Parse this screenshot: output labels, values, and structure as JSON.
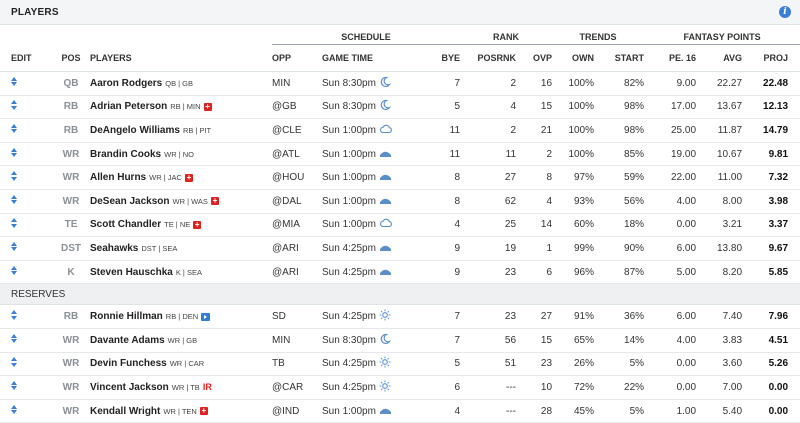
{
  "header": {
    "title": "PLAYERS"
  },
  "groups": {
    "schedule": "SCHEDULE",
    "rank": "RANK",
    "trends": "TRENDS",
    "fantasy": "FANTASY POINTS"
  },
  "columns": {
    "edit": "EDIT",
    "pos": "POS",
    "players": "PLAYERS",
    "opp": "OPP",
    "game_time": "GAME TIME",
    "bye": "BYE",
    "posrnk": "POSRNK",
    "ovp": "OVP",
    "own": "OWN",
    "start": "START",
    "pe16": "PE. 16",
    "avg": "AVG",
    "proj": "PROJ"
  },
  "reserves_label": "RESERVES",
  "starters": [
    {
      "pos": "QB",
      "name": "Aaron Rodgers",
      "meta": "QB | GB",
      "tag": "",
      "opp": "MIN",
      "time": "Sun 8:30pm",
      "weather": "moon",
      "bye": "7",
      "posrnk": "2",
      "ovp": "16",
      "own": "100%",
      "start": "82%",
      "pe16": "9.00",
      "avg": "22.27",
      "proj": "22.48"
    },
    {
      "pos": "RB",
      "name": "Adrian Peterson",
      "meta": "RB | MIN",
      "tag": "plus",
      "opp": "@GB",
      "time": "Sun 8:30pm",
      "weather": "moon",
      "bye": "5",
      "posrnk": "4",
      "ovp": "15",
      "own": "100%",
      "start": "98%",
      "pe16": "17.00",
      "avg": "13.67",
      "proj": "12.13"
    },
    {
      "pos": "RB",
      "name": "DeAngelo Williams",
      "meta": "RB | PIT",
      "tag": "",
      "opp": "@CLE",
      "time": "Sun 1:00pm",
      "weather": "cloud",
      "bye": "11",
      "posrnk": "2",
      "ovp": "21",
      "own": "100%",
      "start": "98%",
      "pe16": "25.00",
      "avg": "11.87",
      "proj": "14.79"
    },
    {
      "pos": "WR",
      "name": "Brandin Cooks",
      "meta": "WR | NO",
      "tag": "",
      "opp": "@ATL",
      "time": "Sun 1:00pm",
      "weather": "dome",
      "bye": "11",
      "posrnk": "11",
      "ovp": "2",
      "own": "100%",
      "start": "85%",
      "pe16": "19.00",
      "avg": "10.67",
      "proj": "9.81"
    },
    {
      "pos": "WR",
      "name": "Allen Hurns",
      "meta": "WR | JAC",
      "tag": "plus",
      "opp": "@HOU",
      "time": "Sun 1:00pm",
      "weather": "dome",
      "bye": "8",
      "posrnk": "27",
      "ovp": "8",
      "own": "97%",
      "start": "59%",
      "pe16": "22.00",
      "avg": "11.00",
      "proj": "7.32"
    },
    {
      "pos": "WR",
      "name": "DeSean Jackson",
      "meta": "WR | WAS",
      "tag": "plus",
      "opp": "@DAL",
      "time": "Sun 1:00pm",
      "weather": "dome",
      "bye": "8",
      "posrnk": "62",
      "ovp": "4",
      "own": "93%",
      "start": "56%",
      "pe16": "4.00",
      "avg": "8.00",
      "proj": "3.98"
    },
    {
      "pos": "TE",
      "name": "Scott Chandler",
      "meta": "TE | NE",
      "tag": "plus",
      "opp": "@MIA",
      "time": "Sun 1:00pm",
      "weather": "cloud",
      "bye": "4",
      "posrnk": "25",
      "ovp": "14",
      "own": "60%",
      "start": "18%",
      "pe16": "0.00",
      "avg": "3.21",
      "proj": "3.37"
    },
    {
      "pos": "DST",
      "name": "Seahawks",
      "meta": "DST | SEA",
      "tag": "",
      "opp": "@ARI",
      "time": "Sun 4:25pm",
      "weather": "dome",
      "bye": "9",
      "posrnk": "19",
      "ovp": "1",
      "own": "99%",
      "start": "90%",
      "pe16": "6.00",
      "avg": "13.80",
      "proj": "9.67"
    },
    {
      "pos": "K",
      "name": "Steven Hauschka",
      "meta": "K | SEA",
      "tag": "",
      "opp": "@ARI",
      "time": "Sun 4:25pm",
      "weather": "dome",
      "bye": "9",
      "posrnk": "23",
      "ovp": "6",
      "own": "96%",
      "start": "87%",
      "pe16": "5.00",
      "avg": "8.20",
      "proj": "5.85"
    }
  ],
  "reserves": [
    {
      "pos": "RB",
      "name": "Ronnie Hillman",
      "meta": "RB | DEN",
      "tag": "play",
      "opp": "SD",
      "time": "Sun 4:25pm",
      "weather": "sun",
      "bye": "7",
      "posrnk": "23",
      "ovp": "27",
      "own": "91%",
      "start": "36%",
      "pe16": "6.00",
      "avg": "7.40",
      "proj": "7.96"
    },
    {
      "pos": "WR",
      "name": "Davante Adams",
      "meta": "WR | GB",
      "tag": "",
      "opp": "MIN",
      "time": "Sun 8:30pm",
      "weather": "moon",
      "bye": "7",
      "posrnk": "56",
      "ovp": "15",
      "own": "65%",
      "start": "14%",
      "pe16": "4.00",
      "avg": "3.83",
      "proj": "4.51"
    },
    {
      "pos": "WR",
      "name": "Devin Funchess",
      "meta": "WR | CAR",
      "tag": "",
      "opp": "TB",
      "time": "Sun 4:25pm",
      "weather": "sun",
      "bye": "5",
      "posrnk": "51",
      "ovp": "23",
      "own": "26%",
      "start": "5%",
      "pe16": "0.00",
      "avg": "3.60",
      "proj": "5.26"
    },
    {
      "pos": "WR",
      "name": "Vincent Jackson",
      "meta": "WR | TB",
      "tag": "ir",
      "tag_text": "IR",
      "opp": "@CAR",
      "time": "Sun 4:25pm",
      "weather": "sun",
      "bye": "6",
      "posrnk": "---",
      "ovp": "10",
      "own": "72%",
      "start": "22%",
      "pe16": "0.00",
      "avg": "7.00",
      "proj": "0.00"
    },
    {
      "pos": "WR",
      "name": "Kendall Wright",
      "meta": "WR | TEN",
      "tag": "plus",
      "opp": "@IND",
      "time": "Sun 1:00pm",
      "weather": "dome",
      "bye": "4",
      "posrnk": "---",
      "ovp": "28",
      "own": "45%",
      "start": "5%",
      "pe16": "1.00",
      "avg": "5.40",
      "proj": "0.00"
    }
  ]
}
